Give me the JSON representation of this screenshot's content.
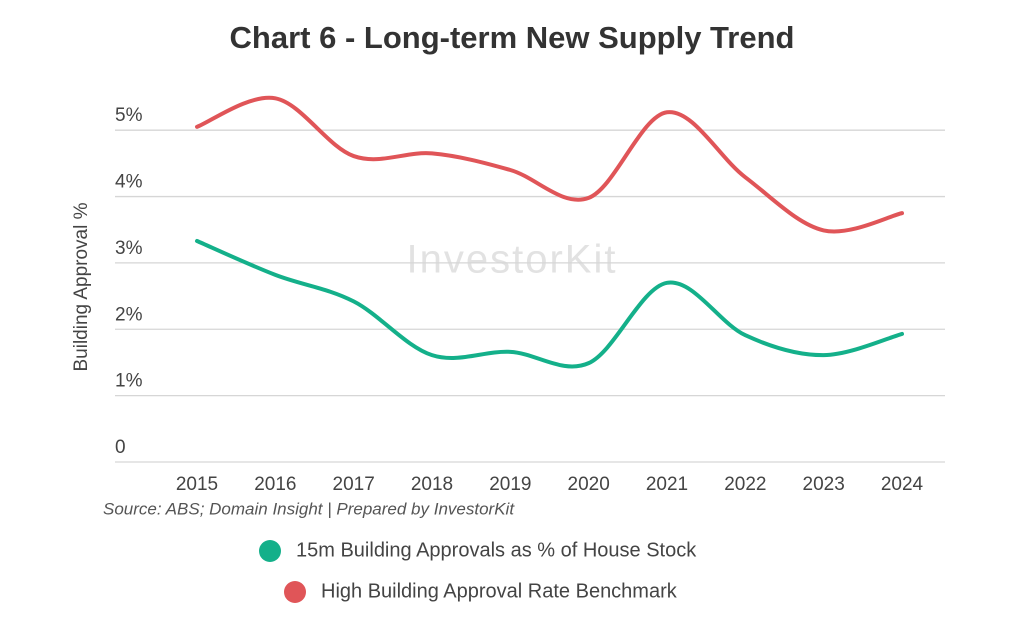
{
  "chart_data": {
    "type": "line",
    "title": "Chart 6 - Long-term New Supply Trend",
    "y_label": "Building Approval %",
    "source": "Source: ABS; Domain Insight | Prepared by InvestorKit",
    "watermark": "InvestorKit",
    "categories": [
      "2015",
      "2016",
      "2017",
      "2018",
      "2019",
      "2020",
      "2021",
      "2022",
      "2023",
      "2024"
    ],
    "series": [
      {
        "name": "15m Building Approvals as % of House Stock",
        "color": "#14b08a",
        "values": [
          3.33,
          2.82,
          2.42,
          1.61,
          1.66,
          1.49,
          2.7,
          1.91,
          1.61,
          1.93
        ]
      },
      {
        "name": "High Building Approval Rate Benchmark",
        "color": "#e05558",
        "values": [
          5.05,
          5.48,
          4.61,
          4.65,
          4.4,
          3.98,
          5.27,
          4.29,
          3.49,
          3.75
        ]
      }
    ],
    "ylim": [
      0,
      5.5
    ],
    "yticks": [
      0,
      {
        "value": 1,
        "label": "1%"
      },
      {
        "value": 2,
        "label": "2%"
      },
      {
        "value": 3,
        "label": "3%"
      },
      {
        "value": 4,
        "label": "4%"
      },
      {
        "value": 5,
        "label": "5%"
      }
    ],
    "grid": true
  }
}
